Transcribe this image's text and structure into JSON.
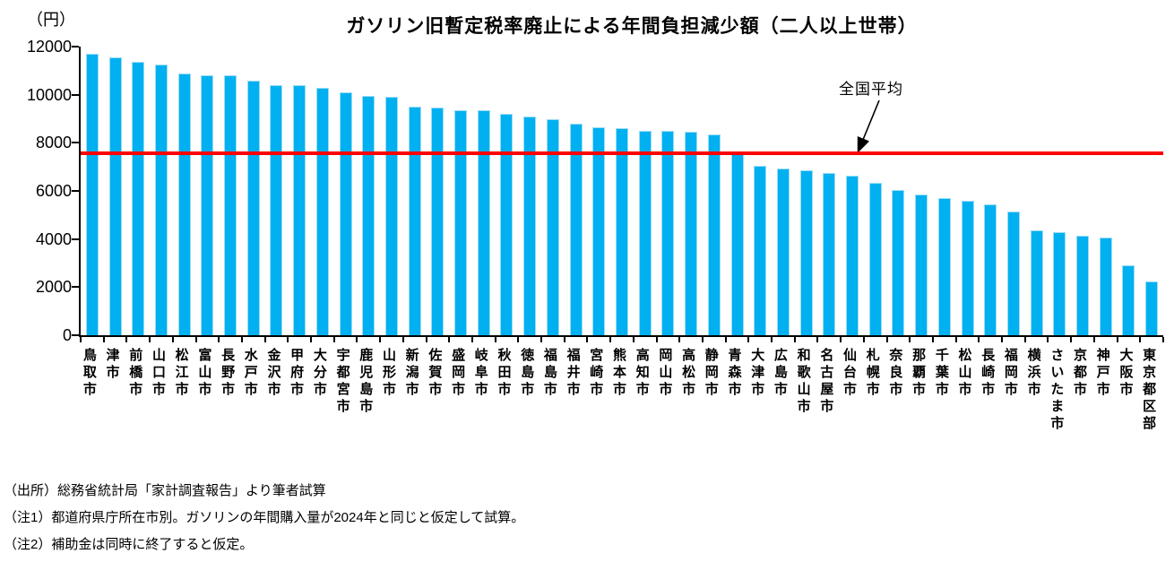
{
  "footnotes": [
    "（出所）総務省統計局「家計調査報告」より筆者試算",
    "（注1）都道府県庁所在市別。ガソリンの年間購入量が2024年と同じと仮定して試算。",
    "（注2）補助金は同時に終了すると仮定。"
  ],
  "colors": {
    "bar": "#00b0f0",
    "bar_edge": "#9adcf6",
    "average_line": "#ff0000",
    "axis": "#000000"
  },
  "chart_data": {
    "type": "bar",
    "title": "ガソリン旧暫定税率廃止による年間負担減少額（二人以上世帯）",
    "unit_label": "（円）",
    "ylabel": "円",
    "xlabel": "",
    "ylim": [
      0,
      12000
    ],
    "yticks": [
      0,
      2000,
      4000,
      6000,
      8000,
      10000,
      12000
    ],
    "grid": false,
    "legend": "none",
    "categories": [
      "鳥取市",
      "津市",
      "前橋市",
      "山口市",
      "松江市",
      "富山市",
      "長野市",
      "水戸市",
      "金沢市",
      "甲府市",
      "大分市",
      "宇都宮市",
      "鹿児島市",
      "山形市",
      "新潟市",
      "佐賀市",
      "盛岡市",
      "岐阜市",
      "秋田市",
      "徳島市",
      "福島市",
      "福井市",
      "宮崎市",
      "熊本市",
      "高知市",
      "岡山市",
      "高松市",
      "静岡市",
      "青森市",
      "大津市",
      "広島市",
      "和歌山市",
      "名古屋市",
      "仙台市",
      "札幌市",
      "奈良市",
      "那覇市",
      "千葉市",
      "松山市",
      "長崎市",
      "福岡市",
      "横浜市",
      "さいたま市",
      "京都市",
      "神戸市",
      "大阪市",
      "東京都区部"
    ],
    "values": [
      11700,
      11550,
      11350,
      11250,
      10900,
      10800,
      10800,
      10600,
      10400,
      10400,
      10300,
      10100,
      9950,
      9900,
      9500,
      9450,
      9350,
      9350,
      9200,
      9100,
      9000,
      8800,
      8650,
      8600,
      8500,
      8500,
      8450,
      8350,
      7650,
      7050,
      6950,
      6850,
      6750,
      6650,
      6350,
      6050,
      5850,
      5700,
      5600,
      5450,
      5150,
      4350,
      4300,
      4150,
      4050,
      2900,
      2250
    ],
    "average_line": {
      "label": "全国平均",
      "value": 7550
    }
  }
}
